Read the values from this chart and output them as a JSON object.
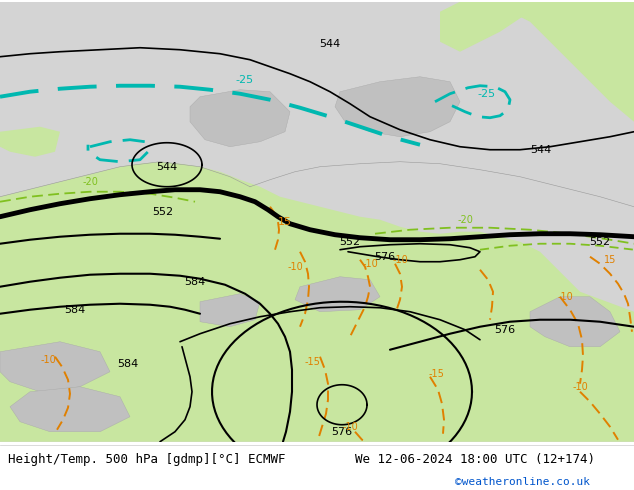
{
  "title_left": "Height/Temp. 500 hPa [gdmp][°C] ECMWF",
  "title_right": "We 12-06-2024 18:00 UTC (12+174)",
  "credit": "©weatheronline.co.uk",
  "bg_color": "#d4d4d4",
  "land_color": "#c8e6a0",
  "gray_land_color": "#c0c0c0",
  "height_color": "#000000",
  "temp_warm_color": "#e08000",
  "temp_cold_color": "#00b8b0",
  "temp_mild_color": "#80c020",
  "font_size_title": 9,
  "figsize": [
    6.34,
    4.9
  ],
  "dpi": 100
}
